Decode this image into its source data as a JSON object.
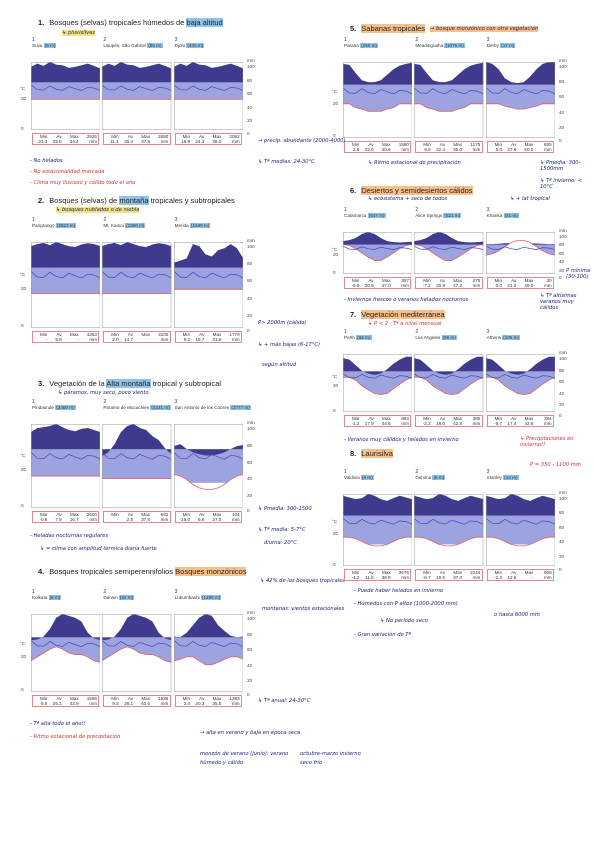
{
  "sections": [
    {
      "num": "1.",
      "title_pre": "Bosques (selvas) tropicales húmedos de ",
      "title_hl": "baja altitud",
      "note": "↳ pluvisilvas"
    },
    {
      "num": "2.",
      "title_pre": "Bosques (selvas) de ",
      "title_hl": "montaña",
      "title_post": " tropicales y subtropicales",
      "note": "↳ bosques nublados o de niebla"
    },
    {
      "num": "3.",
      "title_pre": "Vegetación de la ",
      "title_hl": "Alta montaña",
      "title_post": " tropical y subtropical",
      "note": "↳ páramos, muy seco, poco viento"
    },
    {
      "num": "4.",
      "title_pre": "Bosques tropicales semiperennifolios ",
      "title_hl": "Bosques monzónicos",
      "note": "↳ 42% de los bosques tropicales"
    },
    {
      "num": "5.",
      "title_pre": "Sabanas tropicales",
      "note": "→ bosque monzónico con otra vegetación"
    },
    {
      "num": "6.",
      "title_pre": "Desiertos y semidesiertos cálidos",
      "note": "↳ ecosistema + seco de todos",
      "note2": "↳ + lat tropical"
    },
    {
      "num": "7.",
      "title_pre": "Vegetación mediterránea",
      "note": "↳ P < 2 · Tª a nivel mensual"
    },
    {
      "num": "8.",
      "title_pre": "Laurisilva"
    }
  ],
  "stat_head": {
    "min": "Min",
    "av": "Av",
    "max": "Max",
    "mm": "mm"
  },
  "charts": {
    "s1": [
      {
        "n": "1",
        "place": "Suva",
        "alt": "(6 m)",
        "min": "21.3",
        "av": "25.8",
        "max": "34.4",
        "mm": "2926"
      },
      {
        "n": "2",
        "place": "Uaupés, São Gabriel",
        "alt": "(85 m)",
        "min": "11.1",
        "av": "26.4",
        "max": "37.8",
        "mm": "2680"
      },
      {
        "n": "3",
        "place": "Djolu",
        "alt": "(400 m)",
        "min": "15.9",
        "av": "24.3",
        "max": "36.0",
        "mm": "2052"
      }
    ],
    "s2": [
      {
        "n": "1",
        "place": "Pangrango",
        "alt": "(3023 m)",
        "min": "-",
        "av": "8.9",
        "max": "-",
        "mm": "4263"
      },
      {
        "n": "2",
        "place": "Mt. Kainoi",
        "alt": "(2360 m)",
        "min": "2.0",
        "av": "14.7",
        "max": "-",
        "mm": "3100"
      },
      {
        "n": "3",
        "place": "Merida",
        "alt": "(1640 m)",
        "min": "9.2",
        "av": "18.7",
        "max": "31.6",
        "mm": "1779"
      }
    ],
    "s3": [
      {
        "n": "1",
        "place": "Pindaunde",
        "alt": "(3480 m)",
        "min": "-0.8",
        "av": "7.8",
        "max": "16.7",
        "mm": "2600"
      },
      {
        "n": "2",
        "place": "Paramo de Mucuchies",
        "alt": "(4221 m)",
        "min": "-",
        "av": "2.8",
        "max": "37.8",
        "mm": "682"
      },
      {
        "n": "3",
        "place": "San Antonio de los Cobres",
        "alt": "(3777 m)",
        "min": "-16.0",
        "av": "8.6",
        "max": "27.0",
        "mm": "104"
      }
    ],
    "s4": [
      {
        "n": "1",
        "place": "Kolkata",
        "alt": "(6 m)",
        "min": "6.5",
        "av": "26.1",
        "max": "43.9",
        "mm": "1598"
      },
      {
        "n": "2",
        "place": "Darwin",
        "alt": "(32 m)",
        "min": "9.3",
        "av": "28.1",
        "max": "40.6",
        "mm": "1536"
      },
      {
        "n": "3",
        "place": "Lubumbashi",
        "alt": "(1290 m)",
        "min": "3.4",
        "av": "20.3",
        "max": "35.5",
        "mm": "1383"
      }
    ],
    "s5": [
      {
        "n": "1",
        "place": "Parana",
        "alt": "(260 m)",
        "min": "2.6",
        "av": "22.6",
        "max": "40.6",
        "mm": "1580"
      },
      {
        "n": "2",
        "place": "Meadinguaha",
        "alt": "(1075 m)",
        "min": "6.6",
        "av": "22.4",
        "max": "35.0",
        "mm": "1175"
      },
      {
        "n": "3",
        "place": "Derby",
        "alt": "(17 m)",
        "min": "5.0",
        "av": "27.6",
        "max": "50.0",
        "mm": "655"
      }
    ],
    "s6": [
      {
        "n": "1",
        "place": "Catamarca",
        "alt": "(547 m)",
        "min": "-9.0",
        "av": "20.5",
        "max": "47.0",
        "mm": "357"
      },
      {
        "n": "2",
        "place": "Alice Springs",
        "alt": "(621 m)",
        "min": "-7.2",
        "av": "20.9",
        "max": "47.2",
        "mm": "275"
      },
      {
        "n": "3",
        "place": "Khanka",
        "alt": "(31 m)",
        "min": "0.0",
        "av": "21.0",
        "max": "49.0",
        "mm": "30"
      }
    ],
    "s7": [
      {
        "n": "1",
        "place": "Perth",
        "alt": "(65 m)",
        "min": "-1.2",
        "av": "17.9",
        "max": "44.6",
        "mm": "883"
      },
      {
        "n": "2",
        "place": "Los Angeles",
        "alt": "(95 m)",
        "min": "-2.2",
        "av": "18.0",
        "max": "42.8",
        "mm": "385"
      },
      {
        "n": "3",
        "place": "Athens",
        "alt": "(105 m)",
        "min": "-5.7",
        "av": "17.4",
        "max": "42.8",
        "mm": "384"
      }
    ],
    "s8": [
      {
        "n": "1",
        "place": "Valdivia",
        "alt": "(6 m)",
        "min": "-4.2",
        "av": "11.6",
        "max": "36.6",
        "mm": "2676"
      },
      {
        "n": "2",
        "place": "Oshima",
        "alt": "(5 m)",
        "min": "-6.7",
        "av": "16.6",
        "max": "37.0",
        "mm": "2244"
      },
      {
        "n": "3",
        "place": "Stanley",
        "alt": "(12 m)",
        "min": "-2.2",
        "av": "12.6",
        "max": "-",
        "mm": "908"
      }
    ]
  },
  "axis": {
    "c": "°C",
    "mm": "mm",
    "t20": "20",
    "t0": "0",
    "t40": "40",
    "t60": "60",
    "t80": "80",
    "t100": "100"
  },
  "notes": {
    "s1_a": "→ precip. abundante (2000-4000)",
    "s1_b": "↳ Tª medias: 24-30°C",
    "s1_c": "- No helados",
    "s1_d": "- No estacionalidad marcada",
    "s1_e": "- Clima muy lluvioso y cálido todo el año",
    "s2_a": "P> 2000m (cálido)",
    "s2_b": "↳ + más bajas (6-17°C)",
    "s2_c": "según altitud",
    "s3_a": "- Heladas nocturnas regulares",
    "s3_b": "↳ = clima con amplitud térmica diaria fuerte",
    "s3_c": "↳ Pmedia: 300-1500",
    "s3_d": "↳ Tª media: 5-7°C",
    "s3_e": "diurna: 20°C",
    "s4_a": "montanas: vientos estacionales",
    "s4_b": "↳ Tª anual: 24-30°C",
    "s4_c": "- Tª alta todo el año!!",
    "s4_d": "- Ritmo estacional de precipitación",
    "s4_e": "→ alta en verano y baja en época seca",
    "s4_f": "monzón de verano (junio): verano húmedo y cálido",
    "s4_g": "octubre-marzo invierno seco frío",
    "s5_a": "↳ Ritmo estacional de precipitación",
    "s5_b": "↳ Pmedia: 300-1500mm",
    "s5_c": "↳ Tª invierno: < 10°C",
    "s6_a": "- Inviernos frescos o veranos helados nocturnos",
    "s6_b": "↳ Tª altísimas veranos muy cálidos",
    "s6_c": "P mínima (30-100)",
    "s7_a": "- Veranos muy cálidos y helados en invierno",
    "s7_b": "↳ Precipitaciones en invierno!!",
    "s7_c": "P = 350 - 1100 mm",
    "s8_a": "- Puede haber helados en invierno",
    "s8_b": "- Húmedos con P altos (1000-2000 mm)",
    "s8_c": "o hasta 6000 mm",
    "s8_d": "↳ No periodo seco",
    "s8_e": "- Gran variación de Tª"
  }
}
